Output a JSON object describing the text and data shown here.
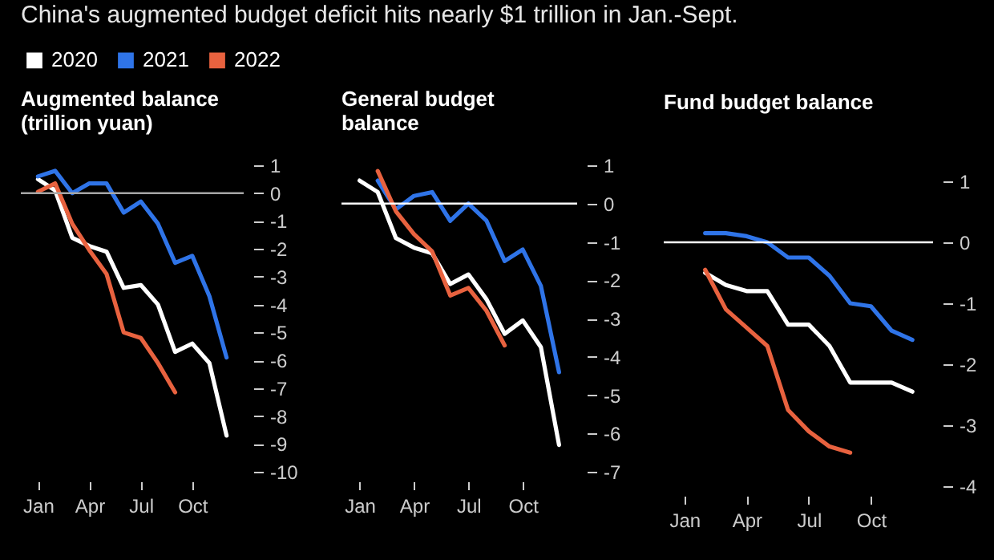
{
  "chart_data": [
    {
      "type": "line",
      "title": "China's augmented budget deficit hits nearly $1 trillion in Jan.-Sept.",
      "subtitle": "Augmented balance\n(trillion yuan)",
      "legend": "top",
      "categories": [
        "Jan",
        null,
        null,
        "Apr",
        null,
        null,
        "Jul",
        null,
        null,
        "Oct",
        null,
        null
      ],
      "ylim": [
        -10,
        1
      ],
      "yticks": [
        1,
        0,
        -1,
        -2,
        -3,
        -4,
        -5,
        -6,
        -7,
        -8,
        -9,
        -10
      ],
      "ref_lines": [
        {
          "axis": "y",
          "value": 0,
          "color": "#a6a6a6"
        }
      ],
      "series": [
        {
          "name": "2020",
          "color": "#ffffff",
          "values": [
            0.5,
            0.1,
            -1.6,
            -1.9,
            -2.1,
            -3.4,
            -3.3,
            -4.0,
            -5.7,
            -5.4,
            -6.1,
            -8.7
          ]
        },
        {
          "name": "2021",
          "color": "#2f74e8",
          "values": [
            0.6,
            0.8,
            0.0,
            0.35,
            0.35,
            -0.7,
            -0.3,
            -1.1,
            -2.5,
            -2.25,
            -3.7,
            -5.9
          ]
        },
        {
          "name": "2022",
          "color": "#e8623f",
          "values": [
            0.05,
            0.35,
            -1.1,
            -2.05,
            -2.9,
            -5.0,
            -5.2,
            -6.1,
            -7.15,
            null,
            null,
            null
          ]
        }
      ]
    },
    {
      "type": "line",
      "title": "General budget\nbalance",
      "categories": [
        "Jan",
        null,
        null,
        "Apr",
        null,
        null,
        "Jul",
        null,
        null,
        "Oct",
        null,
        null
      ],
      "ylim": [
        -7,
        1
      ],
      "yticks": [
        1,
        0,
        -1,
        -2,
        -3,
        -4,
        -5,
        -6,
        -7
      ],
      "ref_lines": [
        {
          "axis": "y",
          "value": 0,
          "color": "#ffffff"
        }
      ],
      "series": [
        {
          "color": "#ffffff",
          "values": [
            0.6,
            0.3,
            -0.9,
            -1.15,
            -1.3,
            -2.1,
            -1.85,
            -2.5,
            -3.4,
            -3.05,
            -3.75,
            -6.3
          ]
        },
        {
          "color": "#2f74e8",
          "values": [
            null,
            0.6,
            -0.15,
            0.2,
            0.3,
            -0.45,
            0.0,
            -0.45,
            -1.5,
            -1.2,
            -2.15,
            -4.4
          ]
        },
        {
          "color": "#e8623f",
          "values": [
            null,
            0.85,
            -0.2,
            -0.8,
            -1.25,
            -2.4,
            -2.2,
            -2.8,
            -3.7,
            null,
            null,
            null
          ]
        }
      ]
    },
    {
      "type": "line",
      "title": "Fund budget balance",
      "categories": [
        "Jan",
        null,
        null,
        "Apr",
        null,
        null,
        "Jul",
        null,
        null,
        "Oct",
        null,
        null
      ],
      "ylim": [
        -4,
        1
      ],
      "yticks": [
        1,
        0,
        -1,
        -2,
        -3,
        -4
      ],
      "ref_lines": [
        {
          "axis": "y",
          "value": 0,
          "color": "#ffffff"
        }
      ],
      "series": [
        {
          "color": "#ffffff",
          "values": [
            null,
            -0.5,
            -0.7,
            -0.8,
            -0.8,
            -1.35,
            -1.35,
            -1.7,
            -2.3,
            -2.3,
            -2.3,
            -2.45
          ]
        },
        {
          "color": "#2f74e8",
          "values": [
            null,
            0.15,
            0.15,
            0.1,
            0.0,
            -0.25,
            -0.25,
            -0.55,
            -1.0,
            -1.05,
            -1.45,
            -1.6
          ]
        },
        {
          "color": "#e8623f",
          "values": [
            null,
            -0.45,
            -1.1,
            -1.4,
            -1.7,
            -2.75,
            -3.1,
            -3.35,
            -3.45,
            null,
            null,
            null
          ]
        }
      ]
    }
  ]
}
